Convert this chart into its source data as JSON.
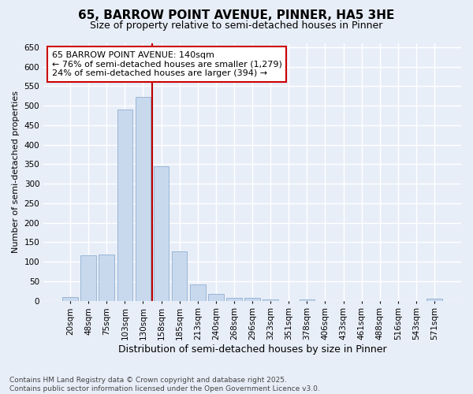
{
  "title_line1": "65, BARROW POINT AVENUE, PINNER, HA5 3HE",
  "title_line2": "Size of property relative to semi-detached houses in Pinner",
  "xlabel": "Distribution of semi-detached houses by size in Pinner",
  "ylabel": "Number of semi-detached properties",
  "categories": [
    "20sqm",
    "48sqm",
    "75sqm",
    "103sqm",
    "130sqm",
    "158sqm",
    "185sqm",
    "213sqm",
    "240sqm",
    "268sqm",
    "296sqm",
    "323sqm",
    "351sqm",
    "378sqm",
    "406sqm",
    "433sqm",
    "461sqm",
    "488sqm",
    "516sqm",
    "543sqm",
    "571sqm"
  ],
  "values": [
    10,
    117,
    118,
    490,
    522,
    345,
    127,
    42,
    18,
    8,
    7,
    4,
    0,
    3,
    0,
    0,
    0,
    0,
    0,
    0,
    5
  ],
  "bar_color": "#c8d9ee",
  "bar_edge_color": "#9ab5d5",
  "vline_x_index": 4.5,
  "vline_color": "#bb0000",
  "ylim": [
    0,
    660
  ],
  "yticks": [
    0,
    50,
    100,
    150,
    200,
    250,
    300,
    350,
    400,
    450,
    500,
    550,
    600,
    650
  ],
  "annotation_title": "65 BARROW POINT AVENUE: 140sqm",
  "annotation_line1": "← 76% of semi-detached houses are smaller (1,279)",
  "annotation_line2": "24% of semi-detached houses are larger (394) →",
  "annotation_box_color": "#cc0000",
  "footer_line1": "Contains HM Land Registry data © Crown copyright and database right 2025.",
  "footer_line2": "Contains public sector information licensed under the Open Government Licence v3.0.",
  "bg_color": "#e8eef8",
  "plot_bg_color": "#e8eef8",
  "grid_color": "#ffffff",
  "title1_fontsize": 11,
  "title2_fontsize": 9,
  "tick_fontsize": 7.5,
  "ylabel_fontsize": 8,
  "xlabel_fontsize": 9,
  "footer_fontsize": 6.5,
  "ann_fontsize": 8
}
